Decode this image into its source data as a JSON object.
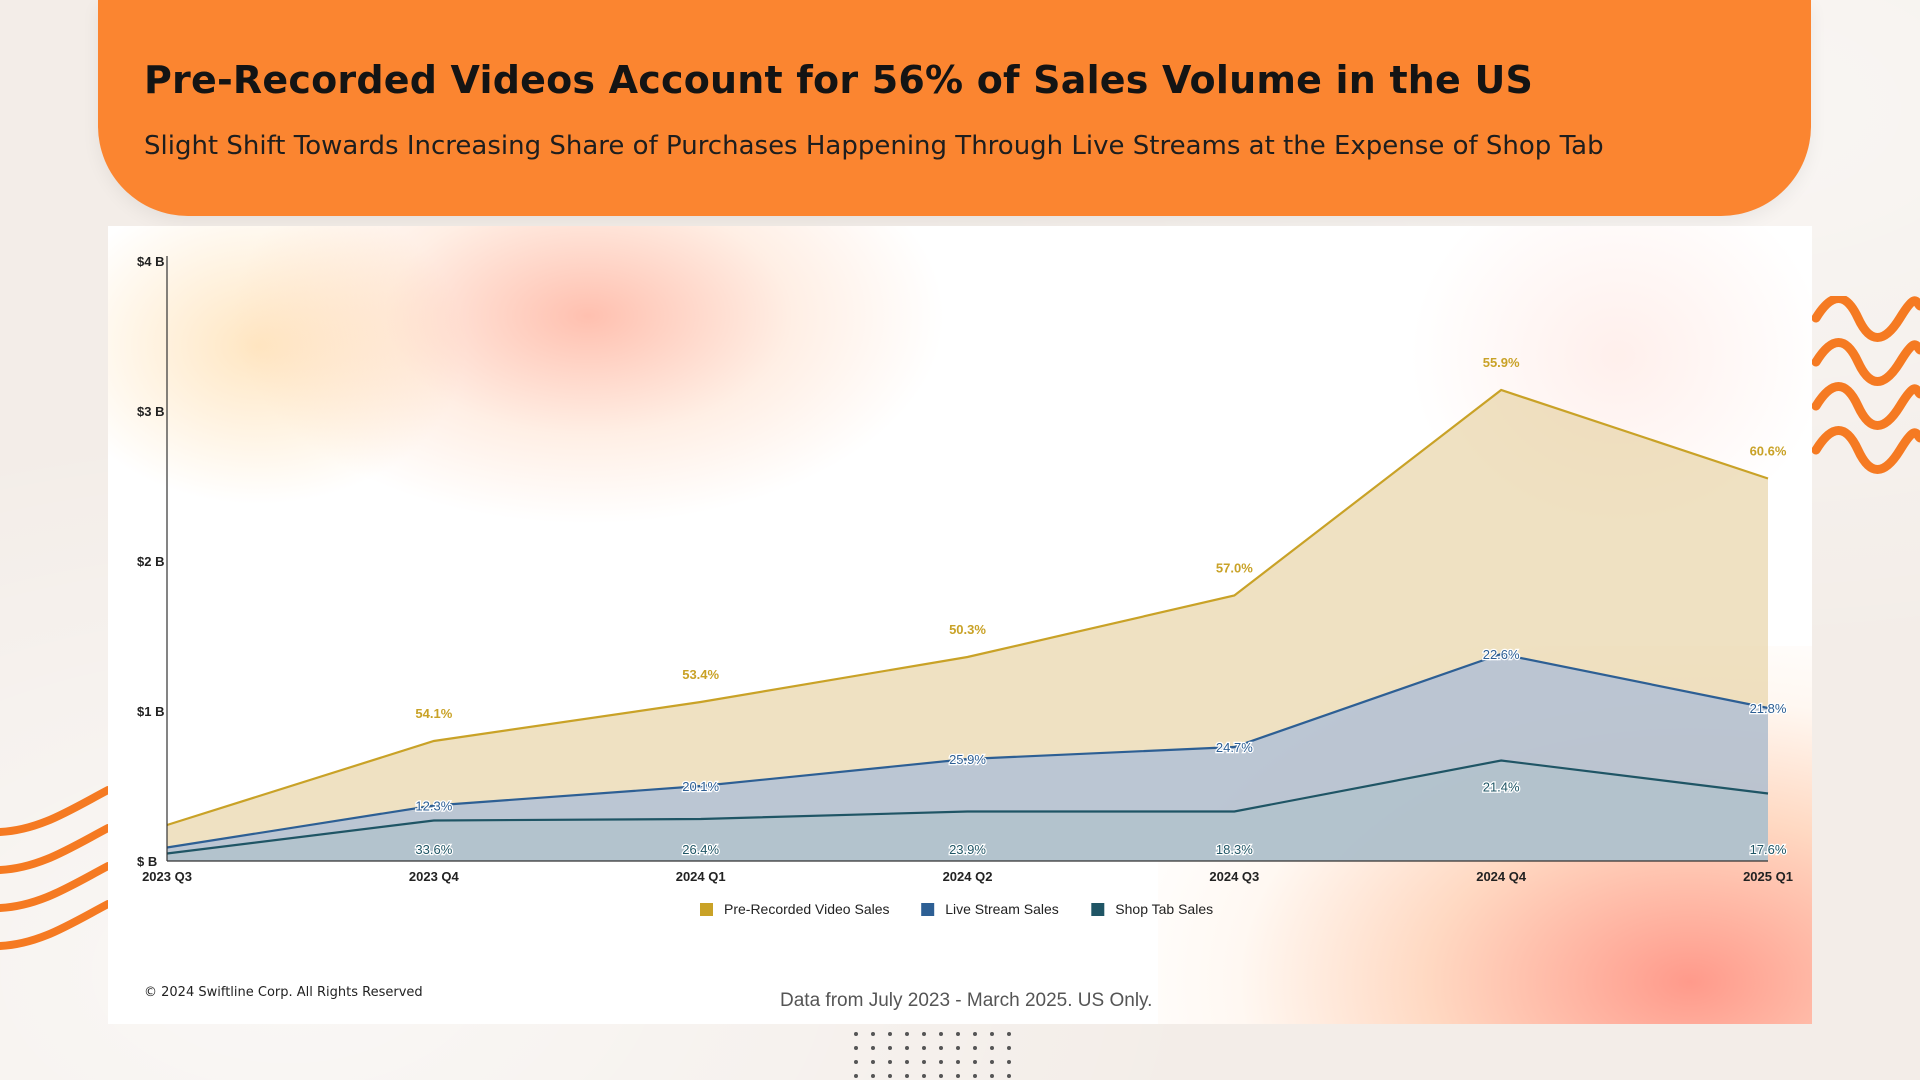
{
  "header": {
    "title": "Pre-Recorded Videos Account for 56% of Sales Volume in the US",
    "subtitle": "Slight Shift Towards Increasing Share of Purchases Happening Through Live Streams at the Expense of Shop Tab"
  },
  "footer": {
    "copyright": "© 2024 Swiftline Corp. All Rights Reserved",
    "source": "Data from July 2023 - March 2025. US Only."
  },
  "colors": {
    "header_bg": "#fb8530",
    "accent_orange": "#f57a22",
    "pre_recorded": "#c9a227",
    "live_stream": "#2d5f94",
    "shop_tab": "#1f5565"
  },
  "chart_data": {
    "type": "area",
    "categories": [
      "2023 Q3",
      "2023 Q4",
      "2024 Q1",
      "2024 Q2",
      "2024 Q3",
      "2024 Q4",
      "2025 Q1"
    ],
    "ylim": [
      0,
      4
    ],
    "y_ticks": [
      {
        "value": 0,
        "label": "$ B"
      },
      {
        "value": 1,
        "label": "$1 B"
      },
      {
        "value": 2,
        "label": "$2 B"
      },
      {
        "value": 3,
        "label": "$3 B"
      },
      {
        "value": 4,
        "label": "$4 B"
      }
    ],
    "legend_position": "bottom",
    "series": [
      {
        "name": "Pre-Recorded Video Sales",
        "color": "#c9a227",
        "fill": "#e8d4a8",
        "cumulative_values": [
          0.24,
          0.8,
          1.06,
          1.36,
          1.77,
          3.14,
          2.55
        ],
        "labels": [
          "",
          "54.1%",
          "53.4%",
          "50.3%",
          "57.0%",
          "55.9%",
          "60.6%"
        ]
      },
      {
        "name": "Live Stream Sales",
        "color": "#2d5f94",
        "fill": "#a9bcd8",
        "cumulative_values": [
          0.09,
          0.37,
          0.5,
          0.68,
          0.76,
          1.38,
          1.02
        ],
        "labels": [
          "",
          "12.3%",
          "20.1%",
          "25.9%",
          "24.7%",
          "22.6%",
          "21.8%"
        ]
      },
      {
        "name": "Shop Tab Sales",
        "color": "#1f5565",
        "fill": "#b0c2cb",
        "cumulative_values": [
          0.05,
          0.27,
          0.28,
          0.33,
          0.33,
          0.67,
          0.45
        ],
        "labels": [
          "",
          "33.6%",
          "26.4%",
          "23.9%",
          "18.3%",
          "21.4%",
          "17.6%"
        ]
      }
    ]
  }
}
